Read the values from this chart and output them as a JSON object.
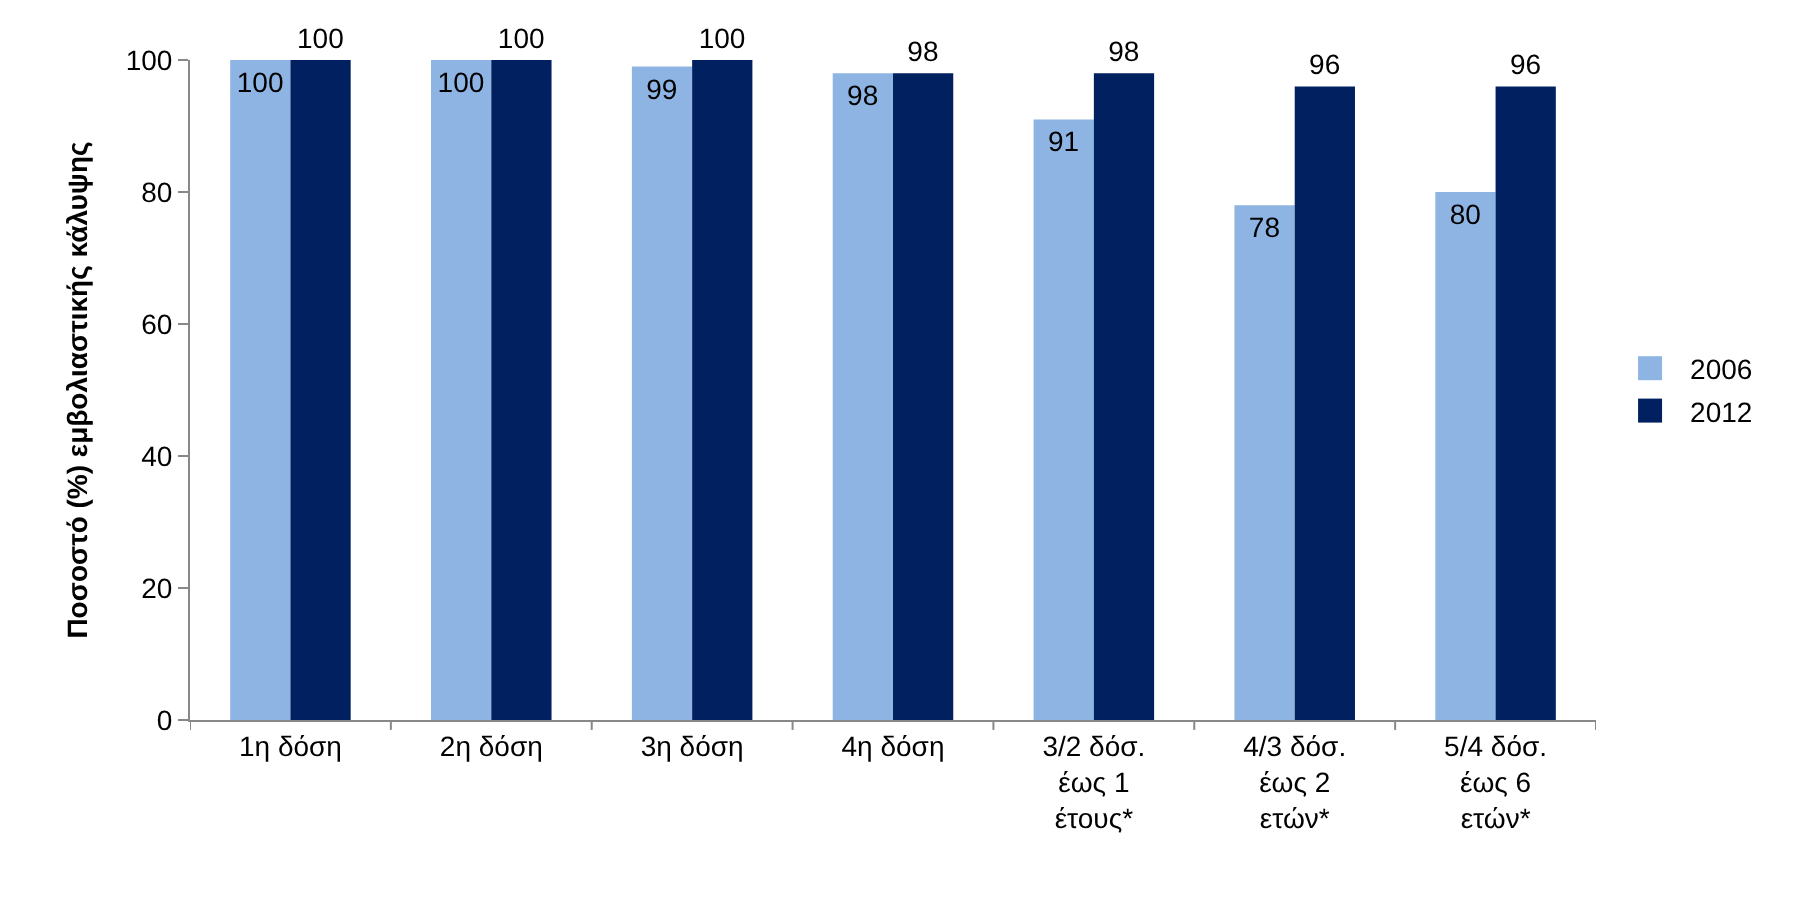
{
  "chart_data": {
    "type": "bar",
    "ylabel": "Ποσοστό (%) εμβολιαστικής κάλυψης",
    "categories": [
      "1η δόση",
      "2η δόση",
      "3η δόση",
      "4η δόση",
      "3/2 δόσ.\nέως 1\nέτους*",
      "4/3 δόσ.\nέως 2\nετών*",
      "5/4 δόσ.\nέως 6\nετών*"
    ],
    "series": [
      {
        "name": "2006",
        "color": "#8eb4e3",
        "values": [
          100,
          100,
          99,
          98,
          91,
          78,
          80
        ]
      },
      {
        "name": "2012",
        "color": "#002060",
        "values": [
          100,
          100,
          100,
          98,
          98,
          96,
          96
        ]
      }
    ],
    "ylim": [
      0,
      100
    ],
    "yticks": [
      0,
      20,
      40,
      60,
      80,
      100
    ],
    "legend": "right",
    "data_labels": true
  }
}
